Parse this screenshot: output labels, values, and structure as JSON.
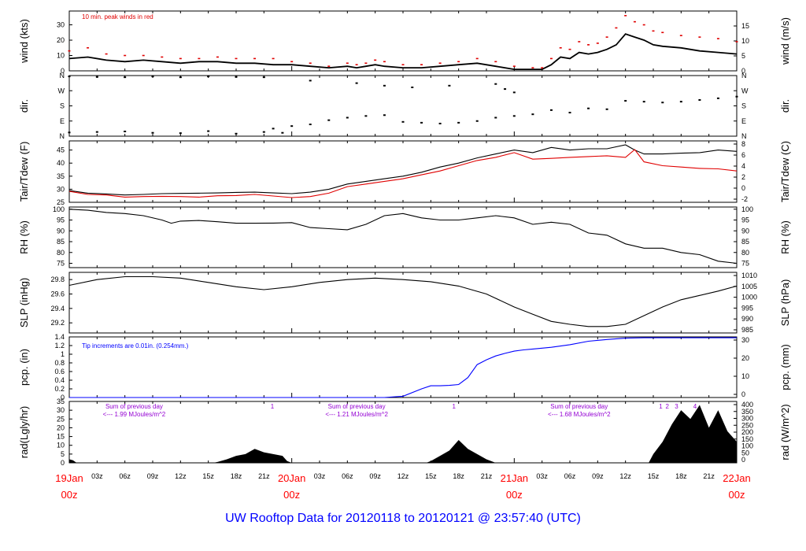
{
  "title": "UW Rooftop Data for 20120118  to  20120121 @ 23:57:40  (UTC)",
  "colors": {
    "black": "#000000",
    "red": "#e00000",
    "blue": "#0000ff",
    "purple": "#9400d3",
    "title": "#0000ff",
    "time_major": "#ff0000"
  },
  "time_axis": {
    "range_hours": [
      0,
      72
    ],
    "major_ticks": [
      {
        "hour": 0,
        "date": "19Jan",
        "time": "00z"
      },
      {
        "hour": 24,
        "date": "20Jan",
        "time": "00z"
      },
      {
        "hour": 48,
        "date": "21Jan",
        "time": "00z"
      },
      {
        "hour": 72,
        "date": "22Jan",
        "time": "00z"
      }
    ],
    "minor_ticks": [
      {
        "hour": 3,
        "label": "03z"
      },
      {
        "hour": 6,
        "label": "06z"
      },
      {
        "hour": 9,
        "label": "09z"
      },
      {
        "hour": 12,
        "label": "12z"
      },
      {
        "hour": 15,
        "label": "15z"
      },
      {
        "hour": 18,
        "label": "18z"
      },
      {
        "hour": 21,
        "label": "21z"
      },
      {
        "hour": 27,
        "label": "03z"
      },
      {
        "hour": 30,
        "label": "06z"
      },
      {
        "hour": 33,
        "label": "09z"
      },
      {
        "hour": 36,
        "label": "12z"
      },
      {
        "hour": 39,
        "label": "15z"
      },
      {
        "hour": 42,
        "label": "18z"
      },
      {
        "hour": 45,
        "label": "21z"
      },
      {
        "hour": 51,
        "label": "03z"
      },
      {
        "hour": 54,
        "label": "06z"
      },
      {
        "hour": 57,
        "label": "09z"
      },
      {
        "hour": 60,
        "label": "12z"
      },
      {
        "hour": 63,
        "label": "15z"
      },
      {
        "hour": 66,
        "label": "18z"
      },
      {
        "hour": 69,
        "label": "21z"
      }
    ]
  },
  "chart_data": [
    {
      "type": "line",
      "id": "wind",
      "ylabel_left": "wind (kts)",
      "ylabel_right": "wind (m/s)",
      "ylim": [
        0,
        39
      ],
      "yticks": [
        0,
        10,
        20,
        30
      ],
      "ylim_right": [
        0,
        20
      ],
      "yticks_right": [
        0,
        5,
        10,
        15
      ],
      "annotation": "10 min. peak winds in red",
      "series": [
        {
          "color": "#000000",
          "x": [
            0,
            2,
            4,
            6,
            8,
            10,
            12,
            14,
            16,
            18,
            20,
            22,
            24,
            26,
            28,
            30,
            31,
            32,
            33,
            34,
            36,
            38,
            40,
            42,
            44,
            46,
            48,
            50,
            51,
            52,
            53,
            54,
            55,
            56,
            57,
            58,
            59,
            60,
            61,
            62,
            63,
            64,
            66,
            68,
            70,
            72
          ],
          "values": [
            8,
            9,
            7,
            6,
            7,
            6,
            5,
            6,
            6,
            5,
            5,
            4,
            4,
            3,
            2,
            3,
            2,
            3,
            4,
            3,
            2,
            2,
            3,
            4,
            5,
            3,
            1,
            1,
            1,
            4,
            9,
            8,
            12,
            11,
            12,
            14,
            17,
            24,
            22,
            20,
            17,
            16,
            15,
            13,
            12,
            11
          ]
        },
        {
          "color": "#e00000",
          "style": "peaks",
          "x": [
            0,
            2,
            4,
            6,
            8,
            10,
            12,
            14,
            16,
            18,
            20,
            22,
            24,
            26,
            28,
            30,
            31,
            32,
            33,
            34,
            36,
            38,
            40,
            42,
            44,
            46,
            48,
            50,
            51,
            52,
            53,
            54,
            55,
            56,
            57,
            58,
            59,
            60,
            61,
            62,
            63,
            64,
            66,
            68,
            70,
            72
          ],
          "values": [
            13,
            15,
            11,
            10,
            10,
            9,
            8,
            8,
            9,
            8,
            8,
            8,
            6,
            5,
            3,
            5,
            4,
            5,
            7,
            6,
            4,
            4,
            5,
            6,
            8,
            6,
            3,
            2,
            2,
            8,
            15,
            14,
            19,
            17,
            18,
            22,
            28,
            36,
            32,
            30,
            26,
            25,
            23,
            22,
            21,
            19
          ]
        }
      ]
    },
    {
      "type": "scatter",
      "id": "dir",
      "ylabel_left": "dir.",
      "ylabel_right": "dir.",
      "yticks_labels": [
        "N",
        "E",
        "S",
        "W",
        "N"
      ],
      "ylim": [
        0,
        360
      ],
      "series": [
        {
          "name": "early",
          "x": [
            0,
            3,
            6,
            9,
            12,
            15,
            18,
            21,
            23
          ],
          "values": [
            22,
            25,
            28,
            20,
            18,
            30,
            15,
            25,
            20
          ]
        },
        {
          "name": "main",
          "x": [
            22,
            24,
            26,
            28,
            30,
            32,
            34,
            36,
            38,
            40,
            42,
            44,
            46,
            48,
            50,
            52,
            54,
            56,
            58,
            60,
            62,
            64,
            66,
            68,
            70,
            72
          ],
          "values": [
            45,
            60,
            70,
            95,
            110,
            120,
            125,
            85,
            80,
            75,
            80,
            90,
            110,
            120,
            130,
            155,
            140,
            165,
            160,
            210,
            205,
            200,
            205,
            215,
            225,
            235
          ]
        },
        {
          "name": "northerly",
          "x": [
            0,
            3,
            6,
            9,
            12,
            15,
            18,
            21,
            26,
            31,
            34,
            37,
            41,
            46,
            47,
            48
          ],
          "values": [
            355,
            352,
            350,
            355,
            350,
            355,
            352,
            350,
            330,
            315,
            300,
            290,
            300,
            310,
            280,
            260
          ]
        }
      ]
    },
    {
      "type": "line",
      "id": "temp",
      "ylabel_left": "Tair/Tdew (F)",
      "ylabel_right": "Tair/Tdew (C)",
      "ylim": [
        25,
        48.5
      ],
      "yticks": [
        25,
        30,
        35,
        40,
        45
      ],
      "yticks_right": [
        -2,
        0,
        2,
        4,
        6,
        8
      ],
      "series": [
        {
          "name": "Tair",
          "color": "#000000",
          "x": [
            0,
            2,
            4,
            6,
            8,
            10,
            12,
            14,
            16,
            18,
            20,
            22,
            24,
            26,
            28,
            30,
            32,
            34,
            36,
            38,
            40,
            42,
            44,
            46,
            48,
            50,
            52,
            54,
            56,
            58,
            60,
            61,
            62,
            64,
            66,
            68,
            70,
            72
          ],
          "values": [
            29.5,
            28.5,
            28.2,
            27.8,
            28.0,
            28.3,
            28.4,
            28.5,
            28.6,
            28.8,
            28.9,
            28.6,
            28.3,
            28.9,
            30,
            32,
            33,
            34,
            35,
            36.5,
            38.5,
            40,
            42,
            43.5,
            45,
            44,
            46,
            45,
            45.5,
            45.5,
            47,
            45,
            43.5,
            43.5,
            43.8,
            44,
            45,
            44.5
          ]
        },
        {
          "name": "Tdew",
          "color": "#e00000",
          "x": [
            0,
            2,
            4,
            6,
            8,
            10,
            12,
            14,
            16,
            18,
            20,
            22,
            24,
            26,
            28,
            30,
            32,
            34,
            36,
            38,
            40,
            42,
            44,
            46,
            48,
            50,
            52,
            54,
            56,
            58,
            60,
            61,
            62,
            64,
            66,
            68,
            70,
            72
          ],
          "values": [
            29.2,
            28.0,
            27.8,
            27.0,
            27.2,
            27.3,
            27.2,
            27.0,
            27.5,
            27.6,
            28.0,
            27.4,
            26.8,
            27.2,
            28.5,
            31,
            32,
            33,
            34,
            35.5,
            37,
            39,
            41,
            42.2,
            44,
            41.5,
            41.8,
            42.2,
            42.5,
            42.8,
            42.2,
            45.2,
            40.5,
            39,
            38.5,
            38,
            37.8,
            37
          ]
        }
      ]
    },
    {
      "type": "line",
      "id": "rh",
      "ylabel_left": "RH (%)",
      "ylabel_right": "RH (%)",
      "ylim": [
        73,
        101
      ],
      "yticks": [
        75,
        80,
        85,
        90,
        95,
        100
      ],
      "series": [
        {
          "name": "RH",
          "color": "#000000",
          "x": [
            0,
            2,
            4,
            6,
            8,
            10,
            11,
            12,
            14,
            16,
            18,
            20,
            22,
            24,
            26,
            28,
            30,
            32,
            34,
            36,
            38,
            40,
            42,
            44,
            46,
            48,
            50,
            52,
            54,
            56,
            58,
            60,
            62,
            64,
            66,
            68,
            70,
            72
          ],
          "values": [
            100,
            99.5,
            98.5,
            98,
            97,
            95,
            93.5,
            94.5,
            94.8,
            94.2,
            93.5,
            93.5,
            93.6,
            93.8,
            91.5,
            91,
            90.5,
            93,
            97,
            98,
            96,
            95,
            95,
            96,
            97,
            96,
            93,
            94,
            93,
            89,
            88,
            84,
            82,
            82,
            80,
            79,
            76,
            75
          ]
        }
      ]
    },
    {
      "type": "line",
      "id": "slp",
      "ylabel_left": "SLP (inHg)",
      "ylabel_right": "SLP (hPa)",
      "ylim": [
        29.06,
        29.9
      ],
      "yticks": [
        29.2,
        29.4,
        29.6,
        29.8
      ],
      "yticks_right": [
        985,
        990,
        995,
        1000,
        1005,
        1010
      ],
      "series": [
        {
          "name": "SLP",
          "color": "#000000",
          "x": [
            0,
            3,
            6,
            9,
            12,
            15,
            18,
            21,
            24,
            27,
            30,
            33,
            36,
            39,
            42,
            45,
            48,
            50,
            52,
            54,
            56,
            58,
            60,
            62,
            64,
            66,
            68,
            70,
            72
          ],
          "values": [
            29.72,
            29.8,
            29.84,
            29.84,
            29.82,
            29.76,
            29.7,
            29.66,
            29.7,
            29.76,
            29.8,
            29.82,
            29.8,
            29.77,
            29.71,
            29.6,
            29.42,
            29.32,
            29.22,
            29.18,
            29.15,
            29.15,
            29.18,
            29.3,
            29.42,
            29.52,
            29.58,
            29.64,
            29.71
          ]
        }
      ]
    },
    {
      "type": "line",
      "id": "pcp",
      "ylabel_left": "pcp. (in)",
      "ylabel_right": "pcp. (mm)",
      "ylim": [
        0,
        1.4
      ],
      "yticks": [
        0,
        0.2,
        0.4,
        0.6,
        0.8,
        1.0,
        1.2,
        1.4
      ],
      "yticks_right": [
        0,
        10,
        20,
        30
      ],
      "annotation": "Tip increments are 0.01in. (0.254mm.)",
      "series": [
        {
          "name": "cumulative precipitation",
          "color": "#0000ff",
          "x": [
            0,
            30,
            34,
            36,
            38,
            39,
            40,
            41,
            42,
            43,
            44,
            45,
            46,
            47,
            48,
            49,
            50,
            52,
            54,
            56,
            58,
            60,
            62,
            64,
            66,
            68,
            70,
            72
          ],
          "values": [
            0,
            0,
            0,
            0.03,
            0.2,
            0.27,
            0.27,
            0.28,
            0.3,
            0.46,
            0.76,
            0.87,
            0.96,
            1.02,
            1.07,
            1.1,
            1.12,
            1.16,
            1.22,
            1.3,
            1.34,
            1.37,
            1.38,
            1.38,
            1.38,
            1.38,
            1.38,
            1.38
          ]
        }
      ]
    },
    {
      "type": "area",
      "id": "rad",
      "ylabel_left": "rad(Lgly/hr)",
      "ylabel_right": "rad (W/m^2)",
      "ylim": [
        0,
        35
      ],
      "yticks": [
        0,
        5,
        10,
        15,
        20,
        25,
        30,
        35
      ],
      "yticks_right": [
        0,
        50,
        100,
        150,
        200,
        250,
        300,
        350,
        400
      ],
      "annotations": [
        {
          "x": 7,
          "line1": "Sum of previous day",
          "line2": "<--- 1.99 MJoules/m^2"
        },
        {
          "x": 31,
          "line1": "Sum of previous day",
          "line2": "<--- 1.21 MJoules/m^2"
        },
        {
          "x": 55,
          "line1": "Sum of previous day",
          "line2": "<--- 1.68 MJoules/m^2"
        }
      ],
      "markers": [
        {
          "x": 21.9,
          "label": "1"
        },
        {
          "x": 41.5,
          "label": "1"
        },
        {
          "x": 63.8,
          "label": "1"
        },
        {
          "x": 64.5,
          "label": "2"
        },
        {
          "x": 65.5,
          "label": "3"
        },
        {
          "x": 67.5,
          "label": "4"
        }
      ],
      "series": [
        {
          "name": "radiation",
          "color": "#000000",
          "x": [
            0,
            0.4,
            0.8,
            15.5,
            16,
            17,
            18,
            19,
            20,
            21,
            22,
            23,
            23.5,
            24,
            38.5,
            39,
            40,
            41,
            42,
            43,
            44,
            45,
            45.5,
            46,
            62.5,
            63,
            64,
            65,
            66,
            67,
            68,
            69,
            70,
            71,
            72
          ],
          "values": [
            2,
            1.5,
            0,
            0,
            0.5,
            2,
            4,
            5,
            8,
            6,
            5,
            4,
            1,
            0,
            0,
            1,
            4,
            7,
            13,
            8,
            5,
            2,
            1,
            0,
            0,
            5,
            12,
            22,
            30,
            25,
            33,
            20,
            30,
            18,
            12
          ]
        }
      ]
    }
  ]
}
